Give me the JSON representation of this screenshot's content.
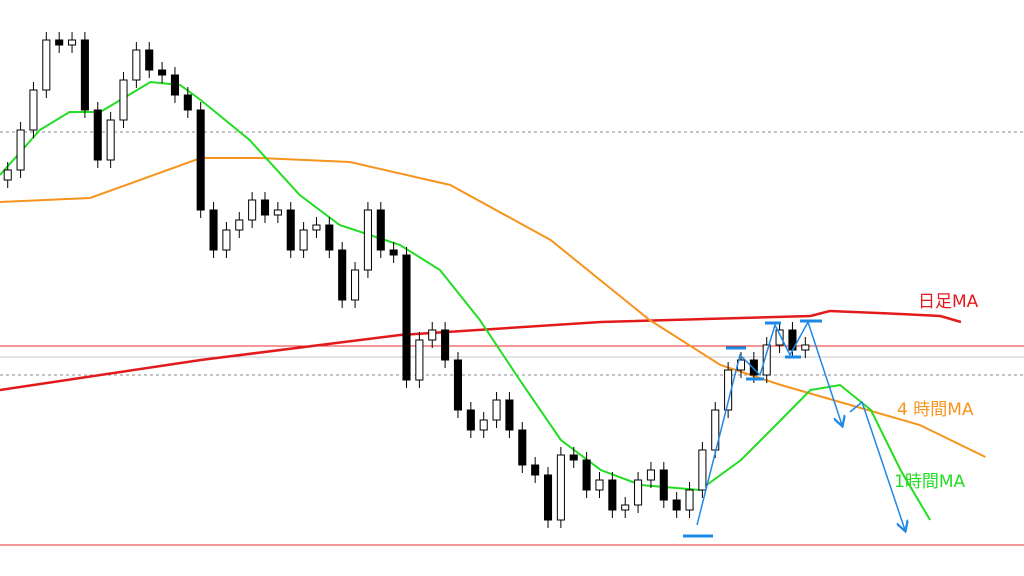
{
  "chart_data": {
    "type": "candlestick",
    "xlim": [
      -0.6,
      79
    ],
    "ylim": [
      0,
      576
    ],
    "open": [
      396,
      406,
      446,
      486,
      536,
      531,
      536,
      466,
      416,
      456,
      496,
      526,
      506,
      501,
      481,
      466,
      366,
      326,
      346,
      356,
      376,
      361,
      366,
      326,
      346,
      351,
      326,
      276,
      306,
      366,
      326,
      321,
      196,
      236,
      246,
      216,
      166,
      146,
      156,
      176,
      146,
      111,
      101,
      56,
      121,
      116,
      86,
      96,
      66,
      71,
      96,
      106,
      76,
      66,
      86,
      126,
      166,
      206,
      216,
      201,
      231,
      246,
      226
    ],
    "high": [
      414,
      454,
      494,
      544,
      544,
      544,
      544,
      474,
      464,
      504,
      534,
      534,
      514,
      509,
      489,
      474,
      374,
      354,
      364,
      384,
      384,
      374,
      374,
      354,
      359,
      359,
      334,
      314,
      374,
      374,
      334,
      329,
      244,
      254,
      254,
      224,
      174,
      164,
      184,
      184,
      154,
      119,
      109,
      129,
      129,
      124,
      104,
      104,
      79,
      104,
      114,
      114,
      84,
      94,
      134,
      174,
      214,
      224,
      224,
      239,
      254,
      254,
      239
    ],
    "low": [
      388,
      398,
      438,
      478,
      523,
      523,
      458,
      408,
      408,
      448,
      488,
      498,
      493,
      473,
      458,
      358,
      318,
      318,
      338,
      348,
      353,
      353,
      318,
      318,
      338,
      318,
      268,
      268,
      298,
      318,
      313,
      188,
      188,
      228,
      208,
      158,
      138,
      138,
      148,
      138,
      103,
      93,
      48,
      48,
      108,
      78,
      78,
      58,
      58,
      63,
      88,
      68,
      58,
      58,
      78,
      118,
      158,
      198,
      193,
      193,
      223,
      218,
      218
    ],
    "close": [
      406,
      446,
      486,
      536,
      531,
      536,
      466,
      416,
      456,
      496,
      526,
      506,
      501,
      481,
      466,
      366,
      326,
      346,
      356,
      376,
      361,
      366,
      326,
      346,
      351,
      326,
      276,
      306,
      366,
      326,
      321,
      196,
      236,
      246,
      216,
      166,
      146,
      156,
      176,
      146,
      111,
      101,
      56,
      121,
      116,
      86,
      96,
      66,
      71,
      96,
      106,
      76,
      66,
      86,
      126,
      166,
      206,
      216,
      201,
      231,
      246,
      226,
      231
    ],
    "up_color": "#ffffff",
    "down_color": "#000000",
    "levels": [
      {
        "value": 230,
        "color": "#e8322f",
        "style": "solid"
      },
      {
        "value": 31,
        "color": "#e8322f",
        "style": "solid"
      },
      {
        "value": 444,
        "color": "#888888",
        "style": "dotted"
      },
      {
        "value": 201,
        "color": "#888888",
        "style": "dotted"
      },
      {
        "value": 219,
        "color": "#c8c8c8",
        "style": "solid"
      }
    ],
    "series": [
      {
        "name": "日足MA",
        "color": "#e31a1c",
        "x": [
          -0.6,
          15,
          30.5,
          46.1,
          62.4,
          63.9,
          69.4,
          72.5,
          74.1
        ],
        "values": [
          186,
          216,
          241,
          254,
          260,
          265,
          262,
          260,
          254
        ]
      },
      {
        "name": "4 時間MA",
        "color": "#f7941d",
        "x": [
          -0.6,
          6.4,
          15,
          19.6,
          26.6,
          34.4,
          42.2,
          49.9,
          55.4,
          60.1,
          65.5,
          70.9,
          76
        ],
        "values": [
          374,
          378,
          418,
          418,
          414,
          391,
          336,
          256,
          211,
          191,
          171,
          151,
          119
        ]
      },
      {
        "name": "1時間MA",
        "color": "#22dd22",
        "x": [
          -0.6,
          2.5,
          4.8,
          7.2,
          11.1,
          13.4,
          15,
          18.8,
          22.7,
          25.8,
          30.5,
          33.6,
          36.7,
          39.8,
          43,
          46.1,
          49.2,
          53.8,
          57,
          60.1,
          62.4,
          64.7,
          67.1,
          69.4,
          71.7
        ],
        "values": [
          401,
          446,
          464,
          464,
          494,
          491,
          476,
          436,
          381,
          351,
          331,
          306,
          256,
          196,
          136,
          106,
          91,
          86,
          116,
          156,
          186,
          191,
          166,
          106,
          56
        ]
      }
    ]
  }
}
